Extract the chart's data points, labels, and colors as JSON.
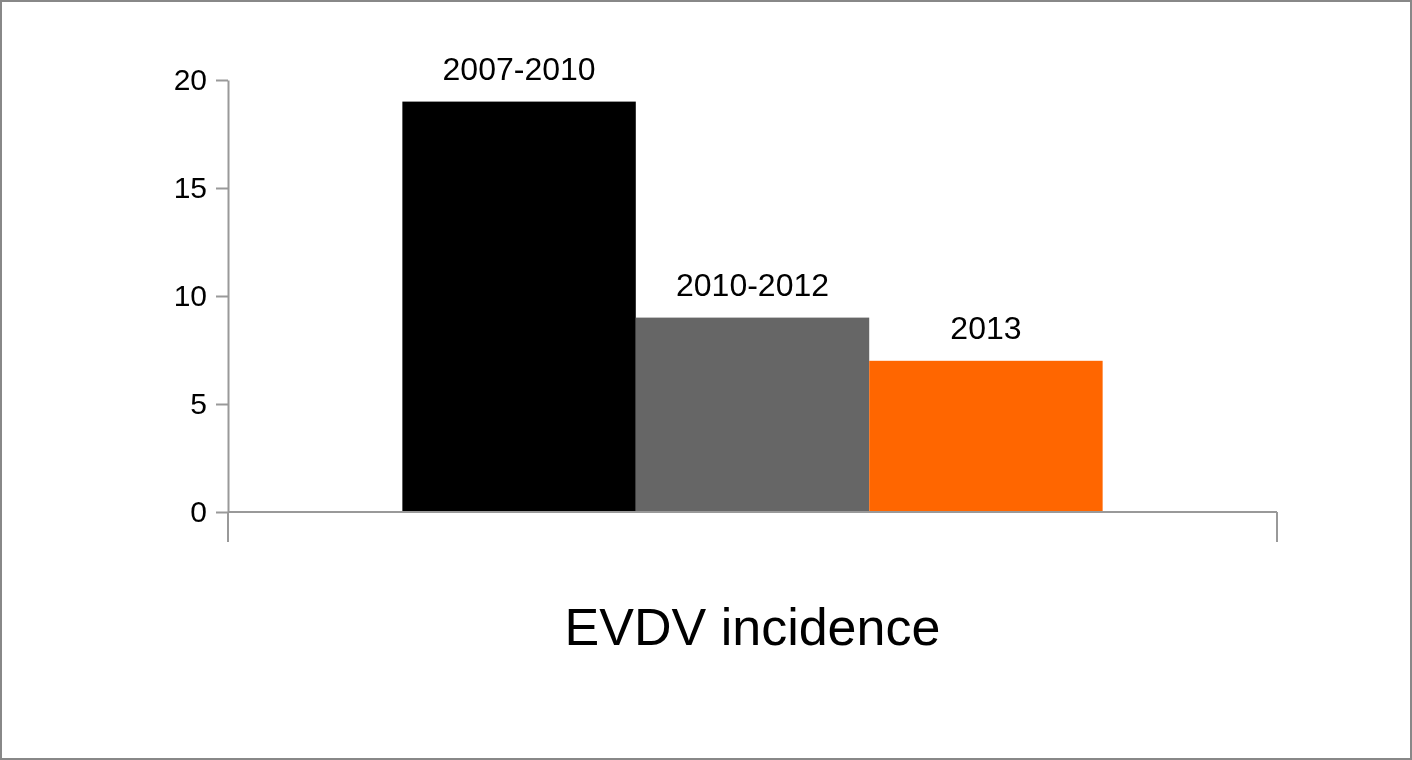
{
  "chart_data": {
    "type": "bar",
    "categories": [
      "EVDV incidence"
    ],
    "series": [
      {
        "name": "2007-2010",
        "color": "#000000",
        "values": [
          19
        ]
      },
      {
        "name": "2010-2012",
        "color": "#666666",
        "values": [
          9
        ]
      },
      {
        "name": "2013",
        "color": "#ff6600",
        "values": [
          7
        ]
      }
    ],
    "ylim": [
      0,
      20
    ],
    "yticks": [
      0,
      5,
      10,
      15,
      20
    ],
    "grid": false
  }
}
